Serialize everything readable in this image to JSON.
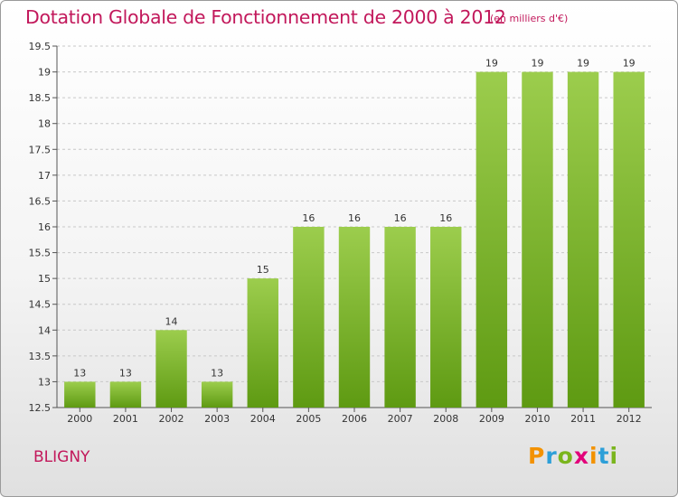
{
  "chart_data": {
    "type": "bar",
    "title": "Dotation Globale de Fonctionnement de 2000 à 2012",
    "unit_note": "(en milliers d'€)",
    "categories": [
      "2000",
      "2001",
      "2002",
      "2003",
      "2004",
      "2005",
      "2006",
      "2007",
      "2008",
      "2009",
      "2010",
      "2011",
      "2012"
    ],
    "values": [
      13,
      13,
      14,
      13,
      15,
      16,
      16,
      16,
      16,
      19,
      19,
      19,
      19
    ],
    "data_labels": [
      "13",
      "13",
      "14",
      "13",
      "15",
      "16",
      "16",
      "16",
      "16",
      "19",
      "19",
      "19",
      "19"
    ],
    "ylim": [
      12.5,
      19.5
    ],
    "yticks": [
      "12.5",
      "13",
      "13.5",
      "14",
      "14.5",
      "15",
      "15.5",
      "16",
      "16.5",
      "17",
      "17.5",
      "18",
      "18.5",
      "19",
      "19.5"
    ],
    "grid": true,
    "bar_color_top": "#9ccd4d",
    "bar_color_bottom": "#5e9a12"
  },
  "commune": "BLIGNY",
  "logo": {
    "text": "Proxiti",
    "letters": [
      {
        "char": "P",
        "color": "#f39200"
      },
      {
        "char": "r",
        "color": "#2d9fd8"
      },
      {
        "char": "o",
        "color": "#7ab51d"
      },
      {
        "char": "x",
        "color": "#e2007a"
      },
      {
        "char": "i",
        "color": "#f39200"
      },
      {
        "char": "t",
        "color": "#2d9fd8"
      },
      {
        "char": "i",
        "color": "#7ab51d"
      }
    ]
  }
}
